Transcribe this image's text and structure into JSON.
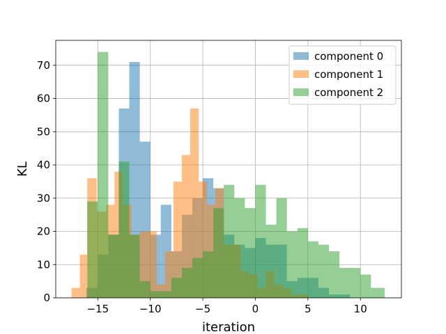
{
  "chart_data": {
    "type": "bar",
    "title": "",
    "xlabel": "iteration",
    "ylabel": "KL",
    "xlim": [
      -19.0,
      13.9
    ],
    "ylim": [
      0,
      77.5
    ],
    "grid": true,
    "legend_position": "top-right",
    "x_ticks": [
      {
        "value": -15,
        "label": "−15"
      },
      {
        "value": -10,
        "label": "−10"
      },
      {
        "value": -5,
        "label": "−5"
      },
      {
        "value": 0,
        "label": "0"
      },
      {
        "value": 5,
        "label": "5"
      },
      {
        "value": 10,
        "label": "10"
      }
    ],
    "y_ticks": [
      {
        "value": 0,
        "label": "0"
      },
      {
        "value": 10,
        "label": "10"
      },
      {
        "value": 20,
        "label": "20"
      },
      {
        "value": 30,
        "label": "30"
      },
      {
        "value": 40,
        "label": "40"
      },
      {
        "value": 50,
        "label": "50"
      },
      {
        "value": 60,
        "label": "60"
      },
      {
        "value": 70,
        "label": "70"
      }
    ],
    "series": [
      {
        "name": "component 0",
        "color": "#1f77b4",
        "alpha": 0.5,
        "bins": [
          [
            -16.1,
            -15.0,
            3
          ],
          [
            -15.0,
            -14.0,
            13
          ],
          [
            -14.0,
            -13.0,
            19
          ],
          [
            -13.0,
            -12.0,
            57
          ],
          [
            -12.0,
            -11.0,
            71
          ],
          [
            -11.0,
            -10.0,
            47
          ],
          [
            -10.0,
            -9.0,
            19
          ],
          [
            -9.0,
            -8.0,
            28
          ],
          [
            -8.0,
            -7.0,
            14
          ],
          [
            -7.0,
            -6.0,
            25
          ],
          [
            -6.0,
            -5.0,
            30
          ],
          [
            -5.0,
            -4.0,
            36
          ],
          [
            -4.0,
            -3.0,
            33
          ],
          [
            -3.0,
            -2.0,
            19
          ],
          [
            -2.0,
            -1.0,
            16
          ],
          [
            -1.0,
            0.0,
            15
          ],
          [
            0.0,
            1.0,
            18
          ],
          [
            1.0,
            2.0,
            16
          ],
          [
            2.0,
            3.0,
            16
          ],
          [
            3.0,
            4.0,
            5
          ],
          [
            4.0,
            5.0,
            6
          ],
          [
            5.0,
            6.0,
            6
          ],
          [
            6.0,
            7.0,
            3
          ],
          [
            7.0,
            8.0,
            1
          ],
          [
            8.0,
            9.0,
            1
          ]
        ]
      },
      {
        "name": "component 1",
        "color": "#ff7f0e",
        "alpha": 0.5,
        "bins": [
          [
            -17.5,
            -16.7,
            3
          ],
          [
            -16.7,
            -16.0,
            13
          ],
          [
            -16.0,
            -15.1,
            36
          ],
          [
            -15.1,
            -14.2,
            26
          ],
          [
            -14.2,
            -13.4,
            28
          ],
          [
            -13.4,
            -12.6,
            38
          ],
          [
            -12.6,
            -11.8,
            28
          ],
          [
            -11.8,
            -11.0,
            19
          ],
          [
            -11.0,
            -10.2,
            20
          ],
          [
            -10.2,
            -9.4,
            20
          ],
          [
            -9.4,
            -8.6,
            4
          ],
          [
            -8.6,
            -7.8,
            14
          ],
          [
            -7.8,
            -7.0,
            35
          ],
          [
            -7.0,
            -6.2,
            43
          ],
          [
            -6.2,
            -5.4,
            57
          ],
          [
            -5.4,
            -4.6,
            35
          ],
          [
            -4.6,
            -3.8,
            28
          ],
          [
            -3.8,
            -3.0,
            33
          ],
          [
            -3.0,
            -2.2,
            16
          ],
          [
            -2.2,
            -1.4,
            16
          ],
          [
            -1.4,
            -0.6,
            8
          ],
          [
            -0.6,
            0.2,
            7
          ],
          [
            0.2,
            1.0,
            3
          ],
          [
            1.0,
            1.8,
            8
          ],
          [
            1.8,
            2.6,
            4
          ],
          [
            2.6,
            3.4,
            3
          ],
          [
            3.4,
            4.2,
            1
          ],
          [
            4.2,
            5.0,
            1
          ]
        ]
      },
      {
        "name": "component 2",
        "color": "#2ca02c",
        "alpha": 0.5,
        "bins": [
          [
            -16.0,
            -15.0,
            29
          ],
          [
            -15.0,
            -14.0,
            74
          ],
          [
            -14.0,
            -13.0,
            19
          ],
          [
            -13.0,
            -12.0,
            41
          ],
          [
            -12.0,
            -11.0,
            19
          ],
          [
            -11.0,
            -10.0,
            5
          ],
          [
            -10.0,
            -9.0,
            2
          ],
          [
            -9.0,
            -8.0,
            2
          ],
          [
            -8.0,
            -7.0,
            6
          ],
          [
            -7.0,
            -6.0,
            9
          ],
          [
            -6.0,
            -5.0,
            12
          ],
          [
            -5.0,
            -4.0,
            14
          ],
          [
            -4.0,
            -3.0,
            27
          ],
          [
            -3.0,
            -2.0,
            34
          ],
          [
            -2.0,
            -1.0,
            30
          ],
          [
            -1.0,
            0.0,
            27
          ],
          [
            0.0,
            1.0,
            34
          ],
          [
            1.0,
            2.0,
            22
          ],
          [
            2.0,
            3.0,
            30
          ],
          [
            3.0,
            4.0,
            20
          ],
          [
            4.0,
            5.0,
            21
          ],
          [
            5.0,
            6.0,
            17
          ],
          [
            6.0,
            7.0,
            16
          ],
          [
            7.0,
            8.0,
            14
          ],
          [
            8.0,
            9.0,
            9
          ],
          [
            9.0,
            10.0,
            9
          ],
          [
            10.0,
            11.0,
            7
          ],
          [
            11.0,
            12.3,
            3
          ]
        ]
      }
    ]
  }
}
